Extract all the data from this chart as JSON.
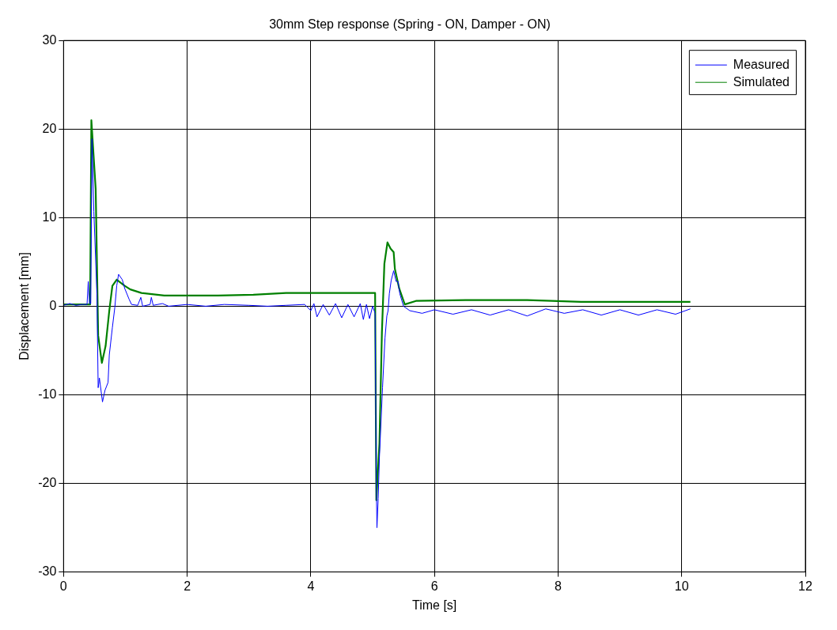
{
  "chart_data": {
    "type": "line",
    "title": "30mm Step response (Spring - ON, Damper - ON)",
    "xlabel": "Time [s]",
    "ylabel": "Displacement [mm]",
    "xlim": [
      0,
      12
    ],
    "xticks": [
      0,
      2,
      4,
      6,
      8,
      10,
      12
    ],
    "ylim": [
      -30,
      30
    ],
    "yticks": [
      -30,
      -20,
      -10,
      0,
      10,
      20,
      30
    ],
    "grid": true,
    "legend": "top right",
    "marker": "none",
    "line_style": "solid",
    "series": [
      {
        "name": "Measured",
        "color": "#0000ff",
        "x": [
          0,
          0.1,
          0.2,
          0.3,
          0.38,
          0.4,
          0.42,
          0.44,
          0.46,
          0.49,
          0.54,
          0.56,
          0.58,
          0.63,
          0.67,
          0.72,
          0.74,
          0.79,
          0.83,
          0.86,
          0.89,
          0.95,
          0.99,
          1.06,
          1.1,
          1.2,
          1.25,
          1.28,
          1.4,
          1.42,
          1.45,
          1.6,
          1.7,
          2.0,
          2.3,
          2.6,
          3.0,
          3.3,
          3.6,
          3.9,
          4.0,
          4.05,
          4.1,
          4.2,
          4.3,
          4.4,
          4.5,
          4.6,
          4.7,
          4.8,
          4.85,
          4.9,
          4.95,
          5.0,
          5.04,
          5.06,
          5.07,
          5.09,
          5.11,
          5.16,
          5.2,
          5.23,
          5.25,
          5.27,
          5.3,
          5.34,
          5.38,
          5.41,
          5.44,
          5.5,
          5.6,
          5.8,
          6.0,
          6.3,
          6.6,
          6.9,
          7.2,
          7.5,
          7.8,
          8.1,
          8.4,
          8.7,
          9.0,
          9.3,
          9.6,
          9.9,
          10.14
        ],
        "values": [
          0.1,
          0.3,
          0.1,
          0.2,
          0.2,
          2.8,
          0.3,
          0.3,
          18.9,
          10.7,
          1.4,
          -9.2,
          -8.1,
          -10.8,
          -9.5,
          -8.6,
          -5.5,
          -2.4,
          -0.1,
          2.3,
          3.6,
          3.0,
          2.0,
          0.8,
          0.2,
          0.1,
          1.0,
          0.0,
          0.2,
          1.0,
          0.1,
          0.3,
          0.0,
          0.2,
          0.0,
          0.2,
          0.1,
          0.0,
          0.1,
          0.2,
          -0.5,
          0.3,
          -1.2,
          0.2,
          -1.0,
          0.3,
          -1.3,
          0.2,
          -1.2,
          0.3,
          -1.5,
          0.2,
          -1.4,
          0.0,
          -0.8,
          -20.5,
          -25.0,
          -21.7,
          -17.0,
          -9.2,
          -3.6,
          -1.1,
          -0.5,
          1.4,
          2.9,
          4.0,
          2.8,
          2.8,
          1.4,
          0.0,
          -0.5,
          -0.8,
          -0.4,
          -0.9,
          -0.4,
          -1.0,
          -0.4,
          -1.1,
          -0.3,
          -0.8,
          -0.4,
          -1.0,
          -0.4,
          -1.0,
          -0.4,
          -0.9,
          -0.3
        ]
      },
      {
        "name": "Simulated",
        "color": "#008000",
        "x": [
          0,
          0.43,
          0.45,
          0.52,
          0.56,
          0.62,
          0.68,
          0.74,
          0.79,
          0.86,
          0.99,
          1.08,
          1.26,
          1.63,
          2.5,
          3.07,
          3.6,
          4.5,
          5.04,
          5.06,
          5.11,
          5.15,
          5.19,
          5.24,
          5.29,
          5.34,
          5.36,
          5.43,
          5.52,
          5.7,
          6.5,
          7.5,
          7.9,
          8.37,
          10.14
        ],
        "values": [
          0.2,
          0.2,
          21.0,
          13.2,
          -3.3,
          -6.4,
          -4.5,
          -0.5,
          2.3,
          3.0,
          2.3,
          1.9,
          1.5,
          1.2,
          1.2,
          1.3,
          1.5,
          1.5,
          1.5,
          -21.9,
          -15.5,
          -3.0,
          4.8,
          7.2,
          6.5,
          6.1,
          4.2,
          2.0,
          0.2,
          0.6,
          0.7,
          0.7,
          0.6,
          0.5,
          0.5
        ]
      }
    ]
  }
}
